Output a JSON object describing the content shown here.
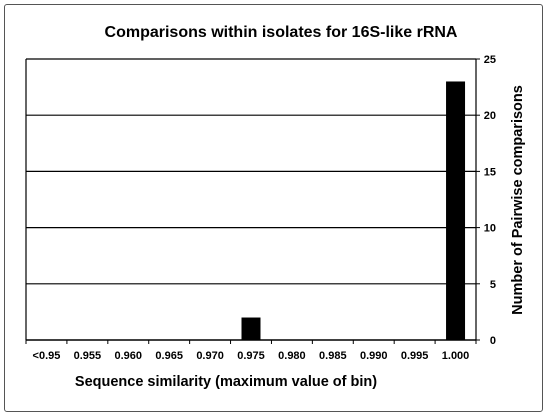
{
  "chart_data": {
    "type": "bar",
    "title": "Comparisons  within isolates for 16S-like rRNA",
    "xlabel": "Sequence similarity  (maximum value of bin)",
    "ylabel": "Number of Pairwise comparisons",
    "categories": [
      "<0.95",
      "0.955",
      "0.960",
      "0.965",
      "0.970",
      "0.975",
      "0.980",
      "0.985",
      "0.990",
      "0.995",
      "1.000"
    ],
    "values": [
      0,
      0,
      0,
      0,
      0,
      2,
      0,
      0,
      0,
      0,
      23
    ],
    "ylim": [
      0,
      25
    ],
    "yticks": [
      0,
      5,
      10,
      15,
      20,
      25
    ],
    "y_axis_side": "right",
    "grid": true,
    "bar_color": "#000000",
    "grid_color": "#000000"
  }
}
